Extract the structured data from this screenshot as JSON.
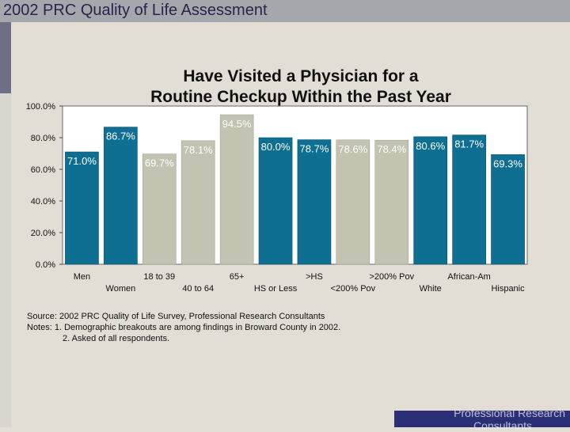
{
  "header": {
    "title": "2002 PRC Quality of Life Assessment"
  },
  "footer": {
    "brand_line1": "Professional Research",
    "brand_line2": "Consultants"
  },
  "notes": {
    "source": "Source: 2002 PRC Quality of Life Survey, Professional Research Consultants",
    "note1": "Notes:   1. Demographic breakouts are among findings in Broward County in 2002.",
    "note2": "2. Asked of all respondents."
  },
  "colors": {
    "dark_bar": "#0f6f93",
    "light_bar": "#c2c4b1",
    "plot_bg": "#ffffff"
  },
  "chart_data": {
    "type": "bar",
    "title_line1": "Have Visited a Physician for a",
    "title_line2": "Routine Checkup Within the Past Year",
    "categories": [
      "Men",
      "Women",
      "18 to 39",
      "40 to 64",
      "65+",
      "HS or Less",
      ">HS",
      "<200% Pov",
      ">200% Pov",
      "White",
      "African-Am",
      "Hispanic"
    ],
    "values": [
      71.0,
      86.7,
      69.7,
      78.1,
      94.5,
      80.0,
      78.7,
      78.6,
      78.4,
      80.6,
      81.7,
      69.3
    ],
    "value_labels": [
      "71.0%",
      "86.7%",
      "69.7%",
      "78.1%",
      "94.5%",
      "80.0%",
      "78.7%",
      "78.6%",
      "78.4%",
      "80.6%",
      "81.7%",
      "69.3%"
    ],
    "bar_colors": [
      "dark",
      "dark",
      "light",
      "light",
      "light",
      "dark",
      "dark",
      "light",
      "light",
      "dark",
      "dark",
      "dark"
    ],
    "yticks": [
      "0.0%",
      "20.0%",
      "40.0%",
      "60.0%",
      "80.0%",
      "100.0%"
    ],
    "ylim": [
      0,
      100
    ],
    "xlabel": "",
    "ylabel": "",
    "grid": false
  }
}
